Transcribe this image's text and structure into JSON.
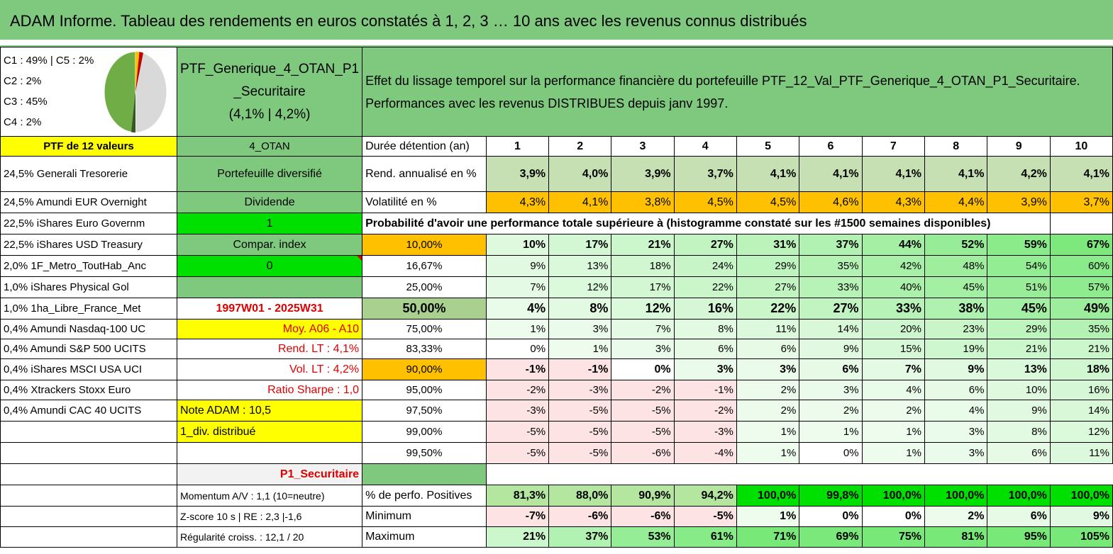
{
  "title": "ADAM Informe. Tableau des rendements en euros constatés à 1, 2, 3 … 10 ans avec les revenus connus distribués",
  "alloc": [
    "C1 : 49% | C5 : 2%",
    "C2 : 2%",
    "C3 : 45%",
    "C4 : 2%"
  ],
  "ptf_name": [
    "PTF_Generique_4_OTAN_P1",
    "_Securitaire",
    "(4,1% | 4,2%)"
  ],
  "effect_text": [
    "Effet du lissage temporel sur la performance financière du portefeuille PTF_12_Val_PTF_Generique_4_OTAN_P1_Securitaire.",
    "Performances avec les revenus DISTRIBUES depuis janv 1997."
  ],
  "ptf_count": "PTF de 12 valeurs",
  "code": "4_OTAN",
  "duree_label": "Durée détention (an)",
  "years": [
    "1",
    "2",
    "3",
    "4",
    "5",
    "6",
    "7",
    "8",
    "9",
    "10"
  ],
  "holdings": [
    "24,5% Generali Tresorerie",
    "24,5% Amundi EUR Overnight",
    "22,5% iShares Euro Governm",
    "22,5% iShares USD Treasury",
    "2,0% 1F_Metro_ToutHab_Anc",
    "1,0% iShares Physical Gol",
    "1,0% 1ha_Libre_France_Met",
    "0,4% Amundi Nasdaq-100 UC",
    "0,4% Amundi S&P 500 UCITS",
    "0,4% iShares MSCI USA UCI",
    "0,4% Xtrackers Stoxx Euro",
    "0,4% Amundi CAC 40 UCITS"
  ],
  "info": {
    "portefeuille": "Portefeuille diversifié",
    "dividende": "Dividende",
    "one": "1",
    "compar": "Compar. index",
    "zero": "0",
    "period": "1997W01 - 2025W31",
    "moy": "Moy. A06 - A10",
    "rend_lt": "Rend. LT : 4,1%",
    "vol_lt": "Vol. LT : 4,2%",
    "sharpe": "Ratio Sharpe : 1,0",
    "note": "Note ADAM : 10,5",
    "div": "1_div. distribué",
    "p1": "P1_Securitaire",
    "momentum": "Momentum A/V : 1,1 (10=neutre)",
    "zscore": "Z-score 10 s | RE : 2,3 |-1,6",
    "regul": "Régularité croiss. : 12,1 / 20"
  },
  "rend": {
    "label": "Rend. annualisé en %",
    "values": [
      "3,9%",
      "4,0%",
      "3,9%",
      "3,7%",
      "4,1%",
      "4,1%",
      "4,1%",
      "4,1%",
      "4,2%",
      "4,1%"
    ]
  },
  "vol": {
    "label": "Volatilité en %",
    "values": [
      "4,3%",
      "4,1%",
      "3,8%",
      "4,5%",
      "4,5%",
      "4,6%",
      "4,3%",
      "4,4%",
      "3,9%",
      "3,7%"
    ]
  },
  "proba_label": "Probabilité d'avoir une performance totale supérieure à (histogramme constaté sur les #1500 semaines disponibles)",
  "pct_rows": [
    {
      "p": "10,00%",
      "v": [
        "10%",
        "17%",
        "21%",
        "27%",
        "31%",
        "37%",
        "44%",
        "52%",
        "59%",
        "67%"
      ]
    },
    {
      "p": "16,67%",
      "v": [
        "9%",
        "13%",
        "18%",
        "24%",
        "29%",
        "35%",
        "42%",
        "48%",
        "54%",
        "60%"
      ]
    },
    {
      "p": "25,00%",
      "v": [
        "7%",
        "12%",
        "17%",
        "22%",
        "27%",
        "33%",
        "40%",
        "45%",
        "51%",
        "57%"
      ]
    },
    {
      "p": "50,00%",
      "v": [
        "4%",
        "8%",
        "12%",
        "16%",
        "22%",
        "27%",
        "33%",
        "38%",
        "45%",
        "49%"
      ]
    },
    {
      "p": "75,00%",
      "v": [
        "1%",
        "3%",
        "7%",
        "8%",
        "11%",
        "14%",
        "20%",
        "23%",
        "29%",
        "35%"
      ]
    },
    {
      "p": "83,33%",
      "v": [
        "0%",
        "1%",
        "3%",
        "6%",
        "6%",
        "9%",
        "15%",
        "19%",
        "21%",
        "21%"
      ]
    },
    {
      "p": "90,00%",
      "v": [
        "-1%",
        "-1%",
        "0%",
        "3%",
        "3%",
        "6%",
        "7%",
        "9%",
        "13%",
        "18%"
      ]
    },
    {
      "p": "95,00%",
      "v": [
        "-2%",
        "-3%",
        "-2%",
        "-1%",
        "2%",
        "3%",
        "4%",
        "6%",
        "10%",
        "16%"
      ]
    },
    {
      "p": "97,50%",
      "v": [
        "-3%",
        "-5%",
        "-5%",
        "-2%",
        "2%",
        "2%",
        "2%",
        "4%",
        "9%",
        "14%"
      ]
    },
    {
      "p": "99,00%",
      "v": [
        "-5%",
        "-5%",
        "-5%",
        "-3%",
        "1%",
        "1%",
        "1%",
        "3%",
        "8%",
        "12%"
      ]
    },
    {
      "p": "99,50%",
      "v": [
        "-5%",
        "-5%",
        "-6%",
        "-4%",
        "1%",
        "0%",
        "1%",
        "3%",
        "6%",
        "11%"
      ]
    }
  ],
  "stats": [
    {
      "label": "% de perfo. Positives",
      "v": [
        "81,3%",
        "88,0%",
        "90,9%",
        "94,2%",
        "100,0%",
        "99,8%",
        "100,0%",
        "100,0%",
        "100,0%",
        "100,0%"
      ]
    },
    {
      "label": "Minimum",
      "v": [
        "-7%",
        "-6%",
        "-6%",
        "-5%",
        "1%",
        "0%",
        "0%",
        "2%",
        "6%",
        "9%"
      ]
    },
    {
      "label": "Maximum",
      "v": [
        "21%",
        "37%",
        "53%",
        "61%",
        "71%",
        "69%",
        "75%",
        "81%",
        "95%",
        "105%"
      ]
    }
  ],
  "colors": {
    "green": "#7fc97f",
    "yellow": "#ffff00",
    "lime": "#00e000",
    "orange": "#ffc000",
    "red": "#e00000"
  }
}
